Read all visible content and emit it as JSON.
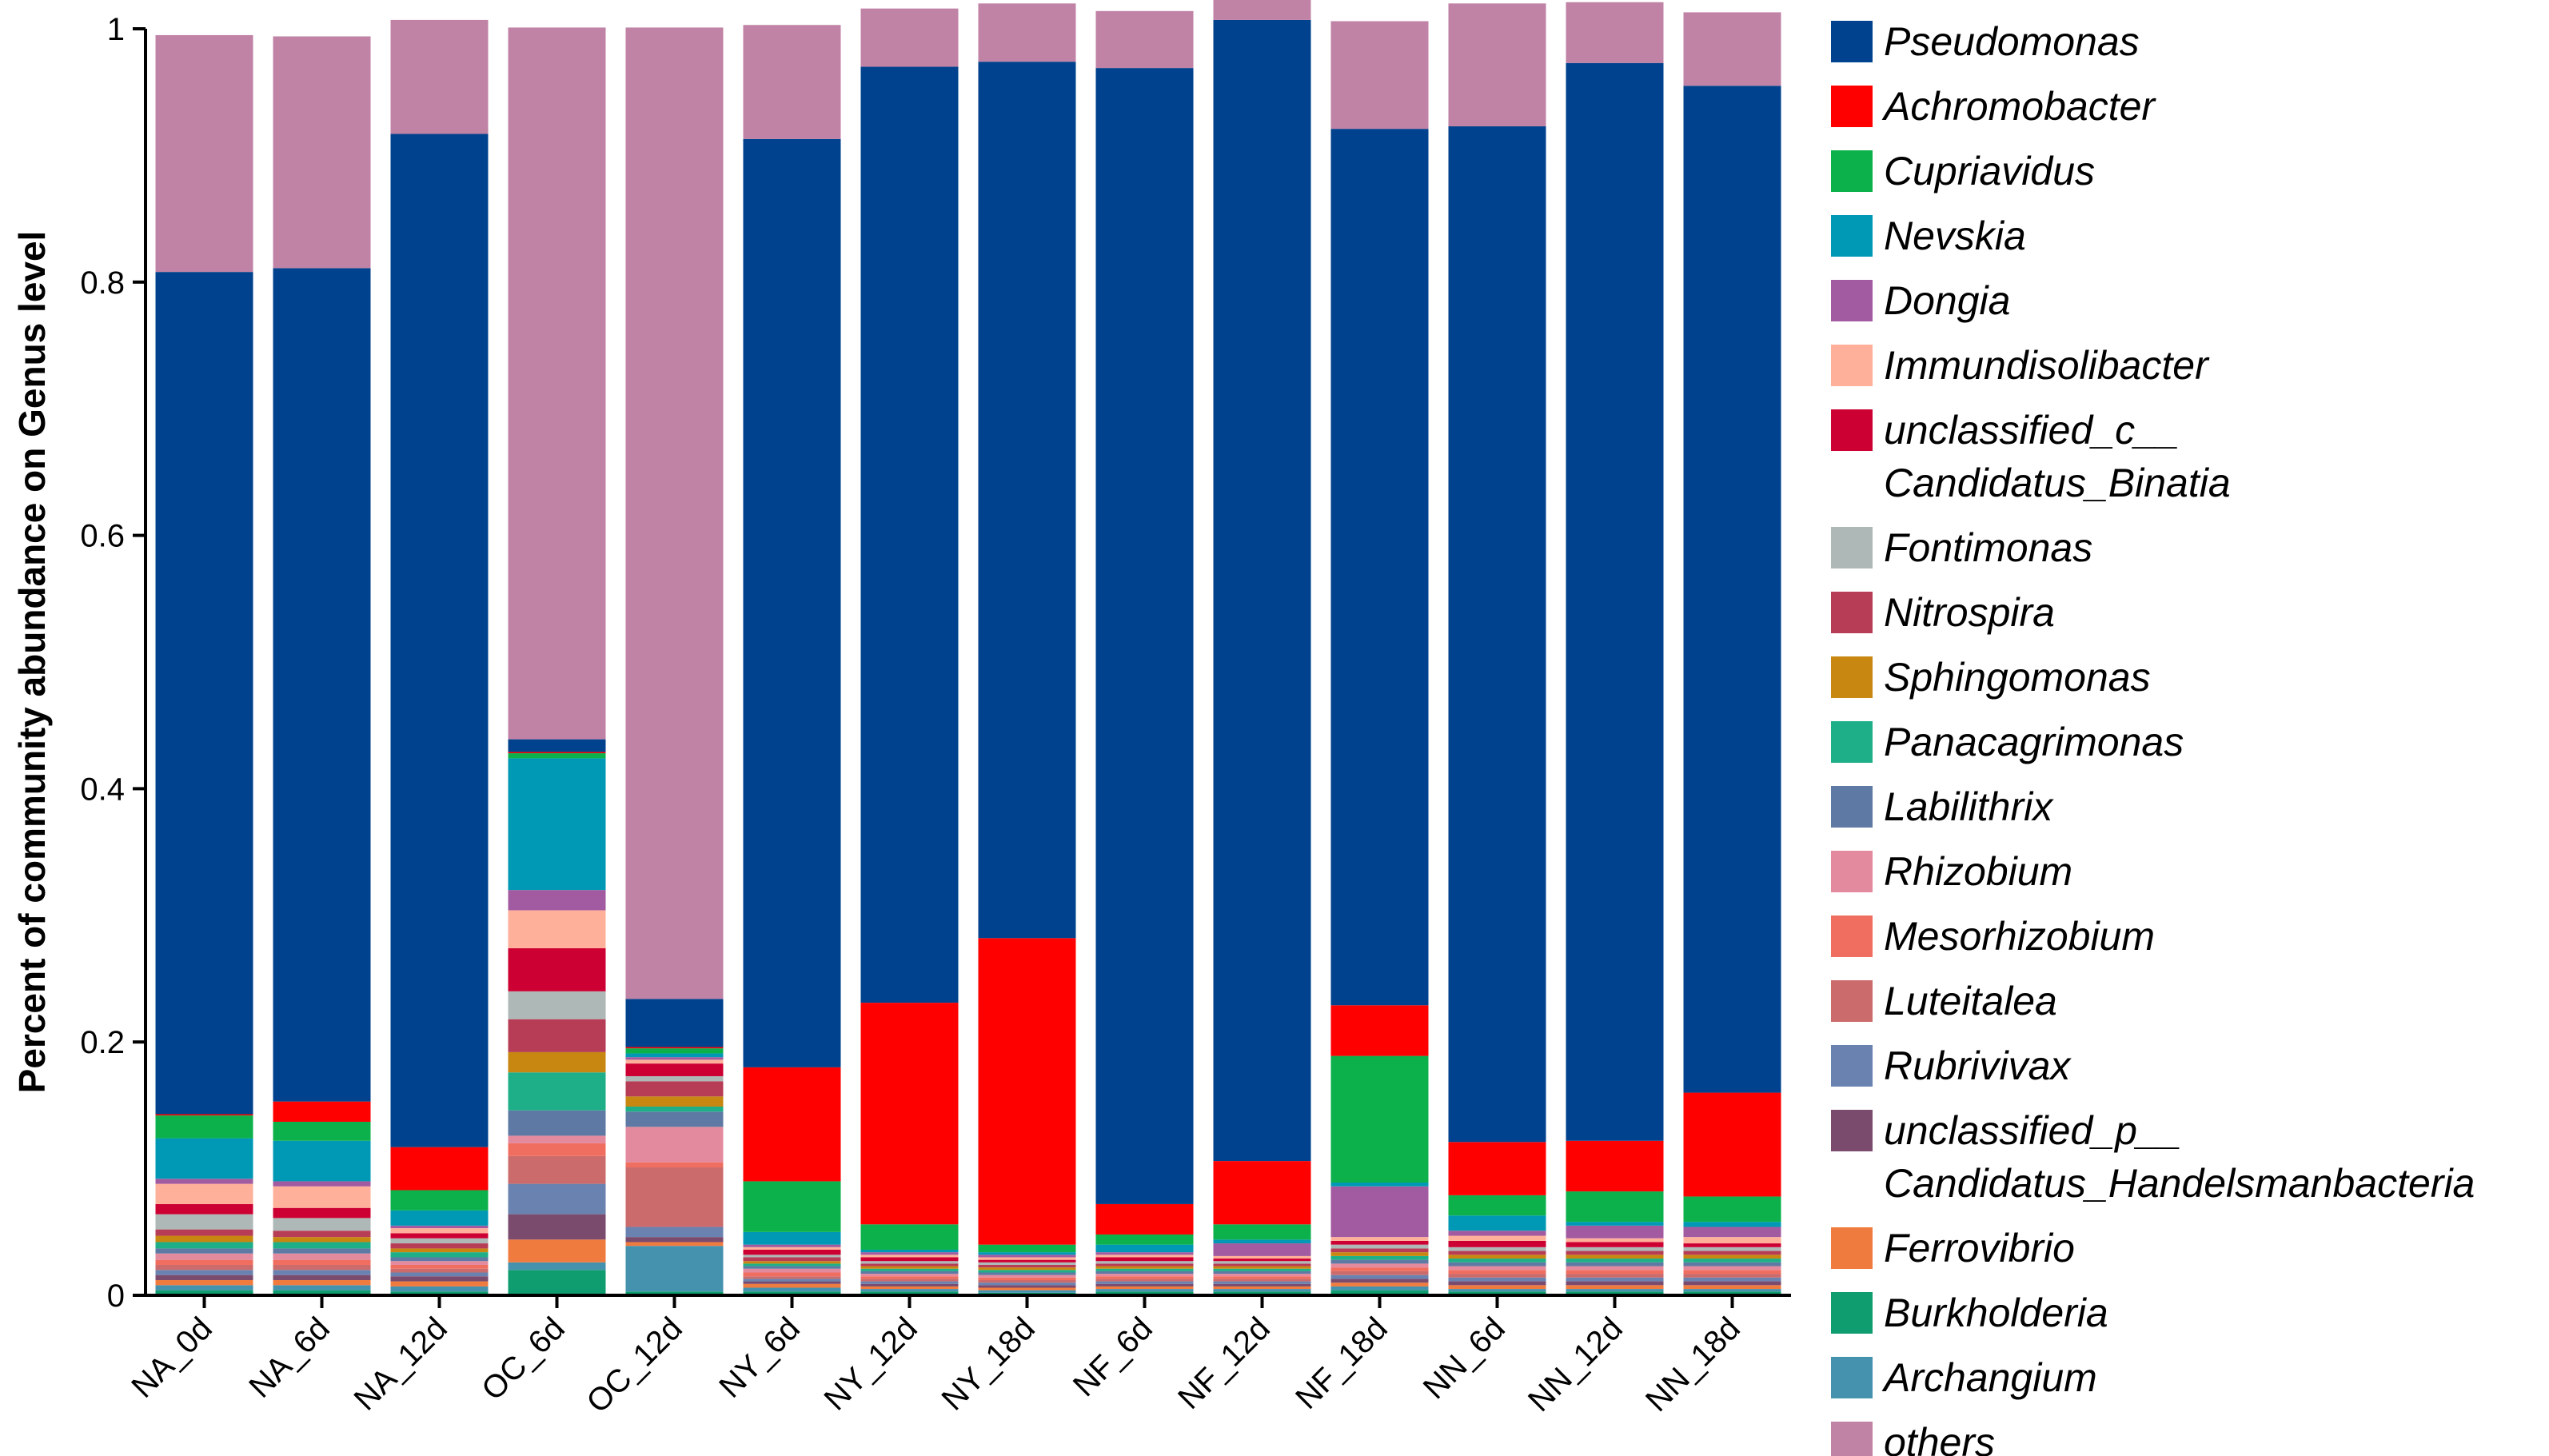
{
  "chart_data": {
    "type": "bar",
    "stacked": true,
    "ylabel": "Percent of community abundance on Genus level",
    "xlabel": "",
    "ylim": [
      0,
      1
    ],
    "yticks": [
      "0",
      "0.2",
      "0.4",
      "0.6",
      "0.8",
      "1"
    ],
    "categories": [
      "NA_0d",
      "NA_6d",
      "NA_12d",
      "OC_6d",
      "OC_12d",
      "NY_6d",
      "NY_12d",
      "NY_18d",
      "NF_6d",
      "NF_12d",
      "NF_18d",
      "NN_6d",
      "NN_12d",
      "NN_18d"
    ],
    "legend_position": "right",
    "series": [
      {
        "name": "Burkholderia",
        "color": "#0F9D6F",
        "values": [
          0.004,
          0.004,
          0.003,
          0.02,
          0.003,
          0.003,
          0.003,
          0.002,
          0.003,
          0.003,
          0.004,
          0.003,
          0.003,
          0.003
        ]
      },
      {
        "name": "Archangium",
        "color": "#4592AF",
        "values": [
          0.004,
          0.004,
          0.004,
          0.006,
          0.036,
          0.003,
          0.002,
          0.002,
          0.002,
          0.002,
          0.003,
          0.002,
          0.002,
          0.002
        ]
      },
      {
        "name": "Ferrovibrio",
        "color": "#F07B3F",
        "values": [
          0.004,
          0.004,
          0.004,
          0.018,
          0.003,
          0.003,
          0.002,
          0.002,
          0.002,
          0.002,
          0.003,
          0.003,
          0.003,
          0.003
        ]
      },
      {
        "name": "unclassified_p__Candidatus_Handelsmanbacteria",
        "color": "#7B4B6E",
        "values": [
          0.004,
          0.004,
          0.004,
          0.02,
          0.004,
          0.002,
          0.002,
          0.002,
          0.002,
          0.002,
          0.003,
          0.003,
          0.003,
          0.003
        ]
      },
      {
        "name": "Rubrivivax",
        "color": "#6A82B0",
        "values": [
          0.004,
          0.004,
          0.003,
          0.024,
          0.008,
          0.002,
          0.002,
          0.002,
          0.002,
          0.002,
          0.003,
          0.003,
          0.003,
          0.003
        ]
      },
      {
        "name": "Luteitalea",
        "color": "#CC6B6B",
        "values": [
          0.004,
          0.004,
          0.003,
          0.022,
          0.047,
          0.002,
          0.002,
          0.002,
          0.002,
          0.002,
          0.003,
          0.003,
          0.003,
          0.003
        ]
      },
      {
        "name": "Mesorhizobium",
        "color": "#F06E60",
        "values": [
          0.004,
          0.004,
          0.003,
          0.01,
          0.004,
          0.003,
          0.002,
          0.002,
          0.002,
          0.002,
          0.003,
          0.003,
          0.003,
          0.003
        ]
      },
      {
        "name": "Rhizobium",
        "color": "#E48A9E",
        "values": [
          0.005,
          0.005,
          0.003,
          0.006,
          0.028,
          0.003,
          0.002,
          0.002,
          0.002,
          0.002,
          0.003,
          0.003,
          0.003,
          0.003
        ]
      },
      {
        "name": "Labilithrix",
        "color": "#5E79A3",
        "values": [
          0.004,
          0.004,
          0.003,
          0.02,
          0.012,
          0.002,
          0.002,
          0.002,
          0.002,
          0.002,
          0.003,
          0.003,
          0.003,
          0.003
        ]
      },
      {
        "name": "Panacagrimonas",
        "color": "#1FAF88",
        "values": [
          0.005,
          0.005,
          0.004,
          0.03,
          0.004,
          0.002,
          0.002,
          0.002,
          0.002,
          0.002,
          0.003,
          0.003,
          0.003,
          0.003
        ]
      },
      {
        "name": "Sphingomonas",
        "color": "#C78711",
        "values": [
          0.005,
          0.004,
          0.003,
          0.016,
          0.008,
          0.002,
          0.002,
          0.002,
          0.002,
          0.002,
          0.003,
          0.003,
          0.003,
          0.003
        ]
      },
      {
        "name": "Nitrospira",
        "color": "#B73C55",
        "values": [
          0.005,
          0.005,
          0.004,
          0.026,
          0.012,
          0.003,
          0.002,
          0.002,
          0.002,
          0.002,
          0.003,
          0.003,
          0.003,
          0.003
        ]
      },
      {
        "name": "Fontimonas",
        "color": "#AEB8B6",
        "values": [
          0.012,
          0.01,
          0.004,
          0.022,
          0.004,
          0.002,
          0.002,
          0.002,
          0.002,
          0.002,
          0.003,
          0.003,
          0.003,
          0.003
        ]
      },
      {
        "name": "unclassified_c__Candidatus_Binatia",
        "color": "#CC0033",
        "values": [
          0.008,
          0.008,
          0.004,
          0.034,
          0.01,
          0.004,
          0.003,
          0.002,
          0.003,
          0.002,
          0.003,
          0.005,
          0.004,
          0.003
        ]
      },
      {
        "name": "Immundisolibacter",
        "color": "#FFB09A",
        "values": [
          0.016,
          0.017,
          0.004,
          0.03,
          0.003,
          0.002,
          0.002,
          0.002,
          0.002,
          0.002,
          0.003,
          0.004,
          0.003,
          0.005
        ]
      },
      {
        "name": "Dongia",
        "color": "#A25BA0",
        "values": [
          0.004,
          0.004,
          0.002,
          0.016,
          0.002,
          0.002,
          0.002,
          0.002,
          0.002,
          0.01,
          0.04,
          0.004,
          0.01,
          0.008
        ]
      },
      {
        "name": "Nevskia",
        "color": "#0099B5",
        "values": [
          0.032,
          0.032,
          0.012,
          0.104,
          0.003,
          0.01,
          0.002,
          0.002,
          0.006,
          0.003,
          0.003,
          0.012,
          0.003,
          0.004
        ]
      },
      {
        "name": "Cupriavidus",
        "color": "#0CB14B",
        "values": [
          0.018,
          0.015,
          0.016,
          0.004,
          0.004,
          0.04,
          0.02,
          0.006,
          0.008,
          0.012,
          0.1,
          0.016,
          0.024,
          0.02
        ]
      },
      {
        "name": "Achromobacter",
        "color": "#FF0000",
        "values": [
          0.001,
          0.016,
          0.034,
          0.001,
          0.001,
          0.09,
          0.175,
          0.242,
          0.024,
          0.05,
          0.04,
          0.042,
          0.04,
          0.082
        ]
      },
      {
        "name": "Pseudomonas",
        "color": "#00428D",
        "values": [
          0.665,
          0.658,
          0.8,
          0.01,
          0.038,
          0.733,
          0.739,
          0.692,
          0.897,
          0.901,
          0.692,
          0.802,
          0.851,
          0.795
        ]
      },
      {
        "name": "others",
        "color": "#C082A5",
        "values": [
          0.187,
          0.183,
          0.09,
          0.562,
          0.767,
          0.09,
          0.046,
          0.046,
          0.045,
          0.018,
          0.085,
          0.097,
          0.048,
          0.058
        ]
      }
    ],
    "legend": [
      {
        "label": "Pseudomonas",
        "color": "#00428D"
      },
      {
        "label": "Achromobacter",
        "color": "#FF0000"
      },
      {
        "label": "Cupriavidus",
        "color": "#0CB14B"
      },
      {
        "label": "Nevskia",
        "color": "#0099B5"
      },
      {
        "label": "Dongia",
        "color": "#A25BA0"
      },
      {
        "label": "Immundisolibacter",
        "color": "#FFB09A"
      },
      {
        "label": "unclassified_c__",
        "label2": "Candidatus_Binatia",
        "color": "#CC0033"
      },
      {
        "label": "Fontimonas",
        "color": "#AEB8B6"
      },
      {
        "label": "Nitrospira",
        "color": "#B73C55"
      },
      {
        "label": "Sphingomonas",
        "color": "#C78711"
      },
      {
        "label": "Panacagrimonas",
        "color": "#1FAF88"
      },
      {
        "label": "Labilithrix",
        "color": "#5E79A3"
      },
      {
        "label": "Rhizobium",
        "color": "#E48A9E"
      },
      {
        "label": "Mesorhizobium",
        "color": "#F06E60"
      },
      {
        "label": "Luteitalea",
        "color": "#CC6B6B"
      },
      {
        "label": "Rubrivivax",
        "color": "#6A82B0"
      },
      {
        "label": "unclassified_p__",
        "label2": "Candidatus_Handelsmanbacteria",
        "color": "#7B4B6E"
      },
      {
        "label": "Ferrovibrio",
        "color": "#F07B3F"
      },
      {
        "label": "Burkholderia",
        "color": "#0F9D6F"
      },
      {
        "label": "Archangium",
        "color": "#4592AF"
      },
      {
        "label": "others",
        "color": "#C082A5"
      }
    ]
  }
}
